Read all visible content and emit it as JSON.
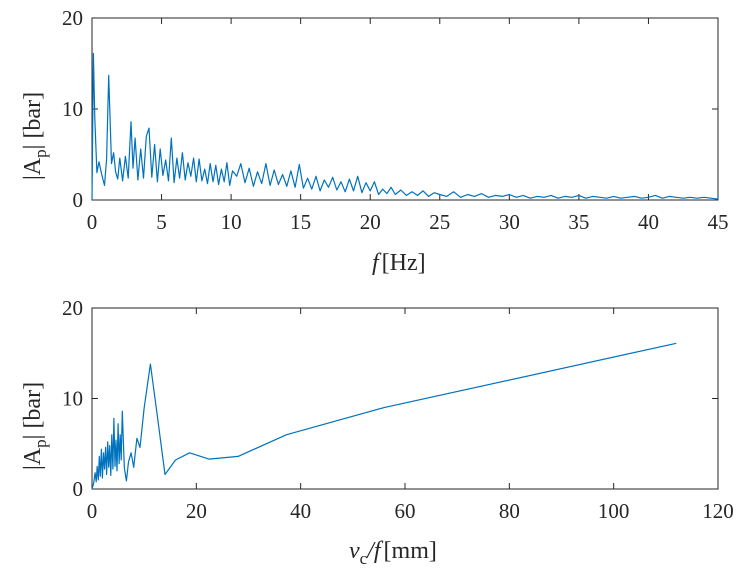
{
  "colors": {
    "line": "#0072BD",
    "axis": "#262626",
    "background": "#ffffff"
  },
  "chart_data": [
    {
      "type": "line",
      "title": "",
      "xlabel": "f [Hz]",
      "xlabel_var": "f",
      "xlabel_unit": "[Hz]",
      "ylabel": "|A_p| [bar]",
      "ylabel_var": "|A",
      "ylabel_sub": "p",
      "ylabel_tail": "| [bar]",
      "xlim": [
        0,
        45
      ],
      "ylim": [
        0,
        20
      ],
      "xticks": [
        0,
        5,
        10,
        15,
        20,
        25,
        30,
        35,
        40,
        45
      ],
      "yticks": [
        0,
        10,
        20
      ],
      "xtick_labels": [
        "0",
        "5",
        "10",
        "15",
        "20",
        "25",
        "30",
        "35",
        "40",
        "45"
      ],
      "ytick_labels": [
        "0",
        "10",
        "20"
      ],
      "grid": false,
      "series": [
        {
          "name": "|A_p|",
          "x": [
            0,
            0.1,
            0.2,
            0.35,
            0.5,
            0.7,
            0.9,
            1.05,
            1.2,
            1.4,
            1.55,
            1.7,
            1.85,
            2.0,
            2.2,
            2.4,
            2.6,
            2.8,
            2.95,
            3.1,
            3.3,
            3.5,
            3.7,
            3.9,
            4.1,
            4.3,
            4.5,
            4.7,
            4.9,
            5.1,
            5.3,
            5.5,
            5.7,
            5.9,
            6.1,
            6.3,
            6.5,
            6.7,
            6.9,
            7.1,
            7.3,
            7.5,
            7.7,
            7.9,
            8.1,
            8.3,
            8.5,
            8.7,
            8.9,
            9.1,
            9.3,
            9.5,
            9.7,
            9.9,
            10.1,
            10.4,
            10.7,
            11.0,
            11.3,
            11.6,
            11.9,
            12.2,
            12.5,
            12.8,
            13.1,
            13.4,
            13.7,
            14.0,
            14.3,
            14.6,
            14.9,
            15.2,
            15.5,
            15.8,
            16.1,
            16.4,
            16.7,
            17.0,
            17.3,
            17.6,
            17.9,
            18.2,
            18.5,
            18.8,
            19.1,
            19.4,
            19.7,
            20.0,
            20.3,
            20.6,
            20.9,
            21.2,
            21.5,
            21.8,
            22.2,
            22.6,
            23.0,
            23.4,
            23.8,
            24.2,
            24.6,
            25.0,
            25.5,
            26.0,
            26.5,
            27.0,
            27.5,
            28.0,
            28.5,
            29.0,
            29.5,
            30.0,
            30.5,
            31.0,
            31.5,
            32.0,
            32.5,
            33.0,
            33.5,
            34.0,
            34.5,
            35.0,
            35.5,
            36.0,
            36.5,
            37.0,
            37.5,
            38.0,
            38.5,
            39.0,
            39.5,
            40.0,
            40.5,
            41.0,
            41.5,
            42.0,
            42.5,
            43.0,
            43.5,
            44.0,
            44.5,
            45.0
          ],
          "y": [
            0,
            16.1,
            9.0,
            3.0,
            4.2,
            2.8,
            1.6,
            4.5,
            13.7,
            4.0,
            5.2,
            3.1,
            2.3,
            4.6,
            2.1,
            4.8,
            2.4,
            8.6,
            3.5,
            6.8,
            2.2,
            5.6,
            2.4,
            7.0,
            7.9,
            2.5,
            6.1,
            2.0,
            5.6,
            2.7,
            4.4,
            2.1,
            6.8,
            1.9,
            4.6,
            2.4,
            5.2,
            2.2,
            4.1,
            2.6,
            4.6,
            2.0,
            4.5,
            2.1,
            3.4,
            1.8,
            4.0,
            2.0,
            3.8,
            1.7,
            3.4,
            2.0,
            4.1,
            1.6,
            3.2,
            2.6,
            4.0,
            1.9,
            3.5,
            1.5,
            3.1,
            1.8,
            4.0,
            1.6,
            3.3,
            1.7,
            2.8,
            1.5,
            3.2,
            1.4,
            3.9,
            1.3,
            2.4,
            1.2,
            2.6,
            1.0,
            2.2,
            1.4,
            2.5,
            1.1,
            2.0,
            0.9,
            2.3,
            1.0,
            2.6,
            0.8,
            1.9,
            1.0,
            2.0,
            0.6,
            1.2,
            0.7,
            1.4,
            0.6,
            1.1,
            0.5,
            0.9,
            0.5,
            1.0,
            0.4,
            0.8,
            0.6,
            0.4,
            0.9,
            0.3,
            0.6,
            0.4,
            0.7,
            0.3,
            0.5,
            0.4,
            0.6,
            0.3,
            0.5,
            0.2,
            0.4,
            0.3,
            0.5,
            0.2,
            0.4,
            0.3,
            0.5,
            0.2,
            0.4,
            0.3,
            0.2,
            0.4,
            0.2,
            0.3,
            0.4,
            0.2,
            0.3,
            0.5,
            0.2,
            0.4,
            0.3,
            0.2,
            0.3,
            0.2,
            0.3,
            0.2,
            0.1
          ]
        }
      ]
    },
    {
      "type": "line",
      "title": "",
      "xlabel": "v_c/f [mm]",
      "xlabel_var": "v",
      "xlabel_sub": "c",
      "xlabel_tail": "/f",
      "xlabel_unit": "[mm]",
      "ylabel": "|A_p| [bar]",
      "ylabel_var": "|A",
      "ylabel_sub": "p",
      "ylabel_tail": "| [bar]",
      "xlim": [
        0,
        120
      ],
      "ylim": [
        0,
        20
      ],
      "xticks": [
        0,
        20,
        40,
        60,
        80,
        100,
        120
      ],
      "yticks": [
        0,
        10,
        20
      ],
      "xtick_labels": [
        "0",
        "20",
        "40",
        "60",
        "80",
        "100",
        "120"
      ],
      "ytick_labels": [
        "0",
        "10",
        "20"
      ],
      "grid": false,
      "series": [
        {
          "name": "|A_p|",
          "x": [
            0.0,
            0.3,
            0.6,
            0.8,
            1.0,
            1.2,
            1.4,
            1.6,
            1.8,
            2.0,
            2.2,
            2.4,
            2.6,
            2.8,
            3.0,
            3.2,
            3.4,
            3.6,
            3.8,
            4.0,
            4.2,
            4.4,
            4.6,
            4.8,
            5.0,
            5.2,
            5.4,
            5.6,
            5.8,
            6.2,
            6.6,
            7.0,
            7.5,
            8.0,
            8.6,
            9.2,
            10.0,
            11.2,
            12.4,
            14.0,
            16.0,
            18.7,
            22.4,
            28.0,
            37.3,
            56.0,
            112.0
          ],
          "y": [
            0.0,
            0.6,
            1.8,
            0.8,
            2.5,
            1.0,
            3.6,
            1.4,
            4.4,
            1.2,
            4.0,
            2.2,
            4.6,
            1.6,
            5.2,
            2.4,
            4.8,
            1.5,
            6.0,
            2.2,
            7.8,
            2.5,
            5.4,
            2.0,
            7.2,
            2.8,
            6.0,
            3.2,
            8.6,
            2.4,
            0.9,
            3.0,
            4.0,
            2.4,
            5.6,
            4.6,
            9.0,
            13.8,
            8.6,
            1.6,
            3.2,
            4.0,
            3.3,
            3.6,
            6.0,
            9.0,
            16.1
          ]
        }
      ]
    }
  ]
}
